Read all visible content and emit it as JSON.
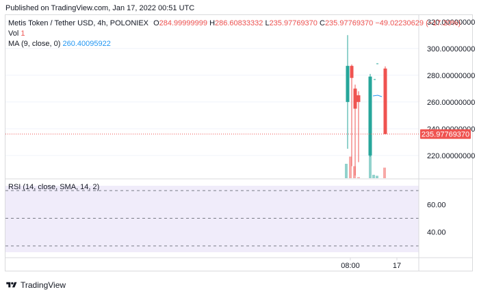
{
  "header": {
    "published": "Published on TradingView.com, Jan 17, 2022 00:51 UTC"
  },
  "legend": {
    "symbol": "Metis Token / Tether USD, 4h, POLONIEX",
    "open_label": "O",
    "open": "284.99999999",
    "high_label": "H",
    "high": "286.60833332",
    "low_label": "L",
    "low": "235.97769370",
    "close_label": "C",
    "close": "235.97769370",
    "change": "−49.02230629 (−17.20%)",
    "vol_label": "Vol",
    "vol_value": "1",
    "ma_label": "MA (9, close, 0)",
    "ma_value": "260.40095922",
    "rsi_label": "RSI (14, close, SMA, 14, 2)"
  },
  "footer": {
    "brand": "TradingView"
  },
  "colors": {
    "up": "#26a69a",
    "down": "#ef5350",
    "ma": "#2196f3",
    "rsi_band": "#f0ecfa"
  },
  "chart_data": [
    {
      "type": "candlestick",
      "price_axis": {
        "ticks": [
          "320.00000000",
          "300.00000000",
          "280.00000000",
          "260.00000000",
          "240.00000000",
          "220.00000000"
        ],
        "range": [
          203,
          325
        ]
      },
      "time_axis": {
        "ticks": [
          "08:00",
          "17"
        ]
      },
      "last_price_label": "235.97769370",
      "last_price": 235.9776937,
      "candles": [
        {
          "o": 260,
          "h": 310,
          "l": 225,
          "c": 287,
          "dir": "up"
        },
        {
          "o": 287,
          "h": 288,
          "l": 212,
          "c": 278,
          "dir": "down"
        },
        {
          "o": 270,
          "h": 273,
          "l": 205,
          "c": 255,
          "dir": "down"
        },
        {
          "o": 265,
          "h": 268,
          "l": 215,
          "c": 260,
          "dir": "down"
        },
        {
          "o": 220,
          "h": 281,
          "l": 219,
          "c": 279,
          "dir": "up"
        },
        {
          "o": 285,
          "h": 286.6,
          "l": 235.98,
          "c": 235.98,
          "dir": "down"
        }
      ],
      "volume": [
        {
          "v": 0.3,
          "dir": "up"
        },
        {
          "v": 0.45,
          "dir": "down"
        },
        {
          "v": 0.25,
          "dir": "down"
        },
        {
          "v": 0.02,
          "dir": "down"
        },
        {
          "v": 0.6,
          "dir": "up"
        },
        {
          "v": 0.07,
          "dir": "up"
        },
        {
          "v": 0.05,
          "dir": "up"
        },
        {
          "v": 0.22,
          "dir": "down"
        }
      ]
    },
    {
      "type": "line",
      "name": "RSI",
      "y_axis": {
        "ticks": [
          "60.00",
          "40.00"
        ],
        "range": [
          22,
          78
        ]
      },
      "bands": [
        70,
        50,
        30
      ]
    }
  ]
}
